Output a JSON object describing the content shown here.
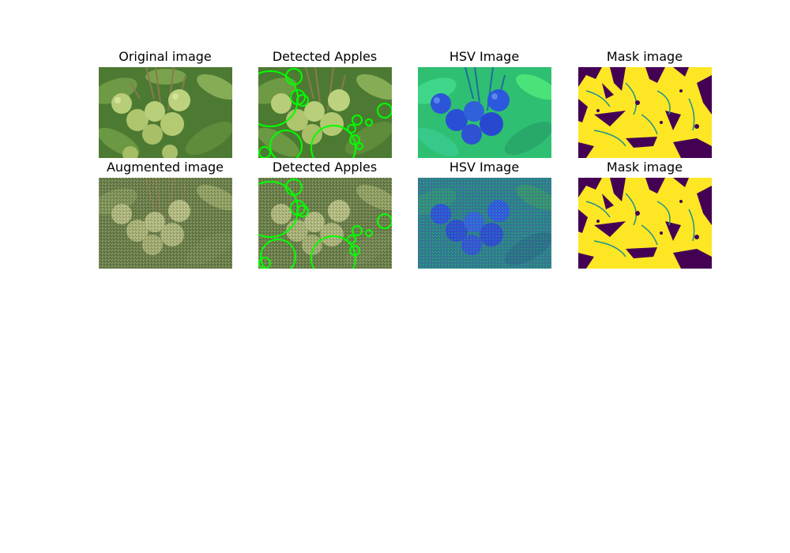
{
  "figure": {
    "rows": [
      {
        "panels": [
          {
            "title": "Original image",
            "kind": "photo"
          },
          {
            "title": "Detected Apples",
            "kind": "detected"
          },
          {
            "title": "HSV Image",
            "kind": "hsv"
          },
          {
            "title": "Mask image",
            "kind": "mask"
          }
        ]
      },
      {
        "panels": [
          {
            "title": "Augmented image",
            "kind": "photo-noisy"
          },
          {
            "title": "Detected Apples",
            "kind": "detected-noisy"
          },
          {
            "title": "HSV Image",
            "kind": "hsv-noisy"
          },
          {
            "title": "Mask image",
            "kind": "mask"
          }
        ]
      }
    ],
    "colors": {
      "leaf_dark": "#3f6b2a",
      "leaf_light": "#7fa64e",
      "apple": "#b9cf7a",
      "circle": "#00ff00",
      "hsv_bg": "#2fc46a",
      "hsv_apple": "#2a4fd6",
      "mask_yellow": "#fde725",
      "mask_purple": "#440154",
      "mask_teal": "#21908d"
    }
  }
}
